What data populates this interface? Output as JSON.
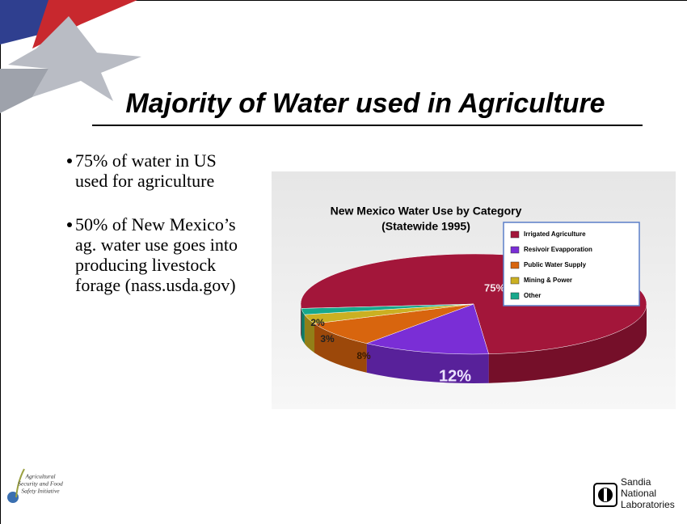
{
  "slide": {
    "title": "Majority of Water used in Agriculture",
    "bullets": [
      "75% of water in US used for agriculture",
      "50% of New Mexico’s ag. water use goes into producing livestock forage (nass.usda.gov)"
    ]
  },
  "chart_data": {
    "type": "pie",
    "title": "New Mexico Water Use by Category",
    "subtitle": "(Statewide 1995)",
    "categories": [
      "Irrigated Agriculture",
      "Resivoir Evapporation",
      "Public Water Supply",
      "Mining & Power",
      "Other"
    ],
    "values": [
      75,
      12,
      8,
      3,
      2
    ],
    "value_labels": [
      "75%",
      "12%",
      "8%",
      "3%",
      "2%"
    ],
    "colors": [
      "#a3163a",
      "#7a2ed6",
      "#d8650e",
      "#cbb022",
      "#17a88c"
    ]
  },
  "footer": {
    "left_logo": [
      "Agricultural",
      "Security and Food",
      "Safety Initiative"
    ],
    "right_logo": [
      "Sandia",
      "National",
      "Laboratories"
    ]
  }
}
